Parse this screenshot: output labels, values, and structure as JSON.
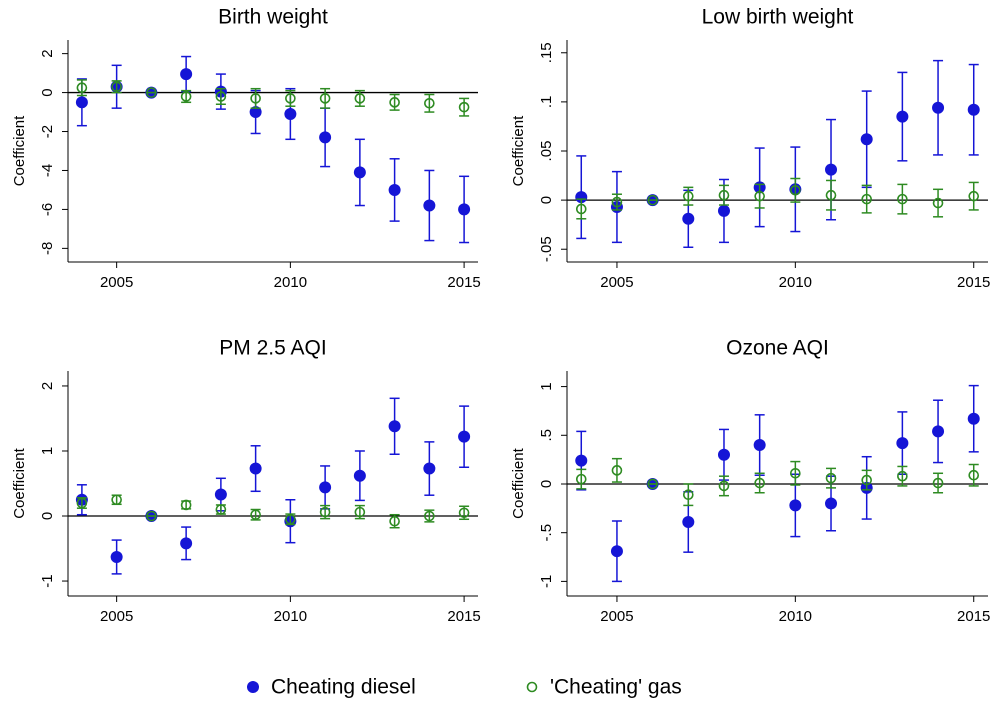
{
  "chart_data": [
    {
      "type": "errorbar",
      "title": "Birth weight",
      "ylabel": "Coefficient",
      "x": [
        2004,
        2005,
        2006,
        2007,
        2008,
        2009,
        2010,
        2011,
        2012,
        2013,
        2014,
        2015
      ],
      "xlim": [
        2003.6,
        2015.4
      ],
      "xticks": [
        2005,
        2010,
        2015
      ],
      "ylim": [
        -8.7,
        2.7
      ],
      "yticks": [
        -8,
        -6,
        -4,
        -2,
        0,
        2
      ],
      "hline": 0,
      "series": [
        {
          "name": "Cheating diesel",
          "color": "#1515d6",
          "marker": "filled",
          "values": [
            -0.5,
            0.3,
            0,
            0.95,
            0.05,
            -1.0,
            -1.1,
            -2.3,
            -4.1,
            -5.0,
            -5.8,
            -6.0
          ],
          "errors": [
            1.2,
            1.1,
            0,
            0.9,
            0.9,
            1.1,
            1.3,
            1.5,
            1.7,
            1.6,
            1.8,
            1.7
          ]
        },
        {
          "name": "'Cheating' gas",
          "color": "#2e8b22",
          "marker": "hollow",
          "values": [
            0.25,
            0.3,
            0,
            -0.2,
            -0.2,
            -0.3,
            -0.3,
            -0.3,
            -0.3,
            -0.5,
            -0.55,
            -0.75
          ],
          "errors": [
            0.4,
            0.3,
            0,
            0.3,
            0.4,
            0.5,
            0.4,
            0.5,
            0.4,
            0.4,
            0.45,
            0.45
          ]
        }
      ]
    },
    {
      "type": "errorbar",
      "title": "Low birth weight",
      "ylabel": "Coefficient",
      "x": [
        2004,
        2005,
        2006,
        2007,
        2008,
        2009,
        2010,
        2011,
        2012,
        2013,
        2014,
        2015
      ],
      "xlim": [
        2003.6,
        2015.4
      ],
      "xticks": [
        2005,
        2010,
        2015
      ],
      "ylim": [
        -0.063,
        0.163
      ],
      "yticks": [
        {
          "value": -0.05,
          "label": "-.05"
        },
        0,
        {
          "value": 0.05,
          "label": ".05"
        },
        {
          "value": 0.1,
          "label": ".1"
        },
        {
          "value": 0.15,
          "label": ".15"
        }
      ],
      "hline": 0,
      "series": [
        {
          "color": "#1515d6",
          "marker": "filled",
          "values": [
            0.003,
            -0.007,
            0,
            -0.019,
            -0.011,
            0.013,
            0.011,
            0.031,
            0.062,
            0.085,
            0.094,
            0.092
          ],
          "errors": [
            0.042,
            0.036,
            0,
            0.029,
            0.032,
            0.04,
            0.043,
            0.051,
            0.049,
            0.045,
            0.048,
            0.046
          ]
        },
        {
          "color": "#2e8b22",
          "marker": "hollow",
          "values": [
            -0.009,
            -0.002,
            0,
            0.004,
            0.005,
            0.004,
            0.01,
            0.005,
            0.001,
            0.001,
            -0.003,
            0.004
          ],
          "errors": [
            0.01,
            0.008,
            0,
            0.009,
            0.01,
            0.012,
            0.012,
            0.015,
            0.014,
            0.015,
            0.014,
            0.014
          ]
        }
      ]
    },
    {
      "type": "errorbar",
      "title": "PM 2.5 AQI",
      "ylabel": "Coefficient",
      "x": [
        2004,
        2005,
        2006,
        2007,
        2008,
        2009,
        2010,
        2011,
        2012,
        2013,
        2014,
        2015
      ],
      "xlim": [
        2003.6,
        2015.4
      ],
      "xticks": [
        2005,
        2010,
        2015
      ],
      "ylim": [
        -1.23,
        2.23
      ],
      "yticks": [
        -1,
        0,
        1,
        2
      ],
      "hline": 0,
      "series": [
        {
          "color": "#1515d6",
          "marker": "filled",
          "values": [
            0.25,
            -0.63,
            0,
            -0.42,
            0.33,
            0.73,
            -0.08,
            0.44,
            0.62,
            1.38,
            0.73,
            1.22
          ],
          "errors": [
            0.23,
            0.26,
            0,
            0.25,
            0.25,
            0.35,
            0.33,
            0.33,
            0.38,
            0.43,
            0.41,
            0.47
          ]
        },
        {
          "color": "#2e8b22",
          "marker": "hollow",
          "values": [
            0.2,
            0.25,
            0,
            0.17,
            0.1,
            0.02,
            -0.05,
            0.06,
            0.06,
            -0.08,
            0.0,
            0.05
          ],
          "errors": [
            0.08,
            0.07,
            0,
            0.06,
            0.07,
            0.08,
            0.08,
            0.1,
            0.1,
            0.1,
            0.09,
            0.1
          ]
        }
      ]
    },
    {
      "type": "errorbar",
      "title": "Ozone AQI",
      "ylabel": "Coefficient",
      "x": [
        2004,
        2005,
        2006,
        2007,
        2008,
        2009,
        2010,
        2011,
        2012,
        2013,
        2014,
        2015
      ],
      "xlim": [
        2003.6,
        2015.4
      ],
      "xticks": [
        2005,
        2010,
        2015
      ],
      "ylim": [
        -1.15,
        1.16
      ],
      "yticks": [
        -1,
        {
          "value": -0.5,
          "label": "-.5"
        },
        0,
        {
          "value": 0.5,
          "label": ".5"
        },
        1
      ],
      "hline": 0,
      "series": [
        {
          "color": "#1515d6",
          "marker": "filled",
          "values": [
            0.24,
            -0.69,
            0,
            -0.39,
            0.3,
            0.4,
            -0.22,
            -0.2,
            -0.04,
            0.42,
            0.54,
            0.67
          ],
          "errors": [
            0.3,
            0.31,
            0,
            0.31,
            0.26,
            0.31,
            0.32,
            0.28,
            0.32,
            0.32,
            0.32,
            0.34
          ]
        },
        {
          "color": "#2e8b22",
          "marker": "hollow",
          "values": [
            0.05,
            0.14,
            0,
            -0.11,
            -0.02,
            0.01,
            0.11,
            0.06,
            0.04,
            0.08,
            0.01,
            0.09
          ],
          "errors": [
            0.1,
            0.12,
            0,
            0.11,
            0.1,
            0.1,
            0.12,
            0.1,
            0.1,
            0.1,
            0.1,
            0.11
          ]
        }
      ]
    }
  ]
}
